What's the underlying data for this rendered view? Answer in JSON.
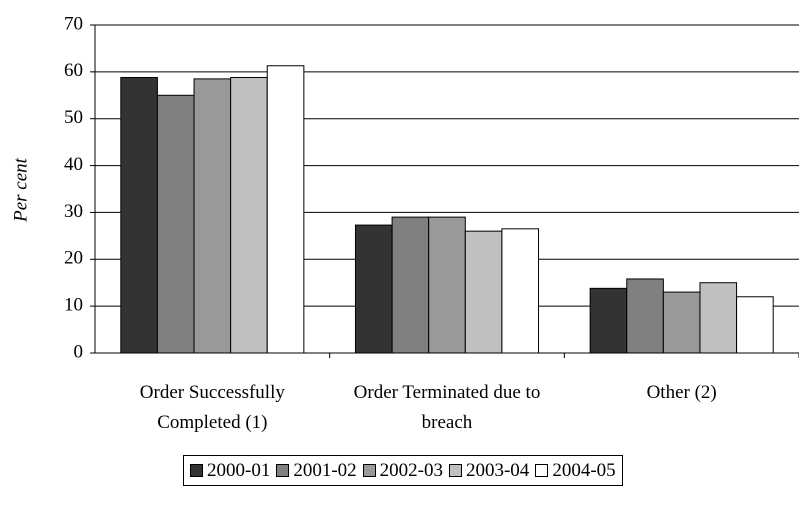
{
  "chart_data": {
    "type": "bar",
    "y_label": "Per cent",
    "categories": [
      "Order Successfully Completed (1)",
      "Order Terminated due to breach",
      "Other (2)"
    ],
    "series": [
      {
        "name": "2000-01",
        "color": "#333333",
        "values": [
          58.8,
          27.3,
          13.8
        ]
      },
      {
        "name": "2001-02",
        "color": "#808080",
        "values": [
          55,
          29,
          15.8
        ]
      },
      {
        "name": "2002-03",
        "color": "#999999",
        "values": [
          58.5,
          29,
          13
        ]
      },
      {
        "name": "2003-04",
        "color": "#c0c0c0",
        "values": [
          58.8,
          26,
          15
        ]
      },
      {
        "name": "2004-05",
        "color": "#ffffff",
        "values": [
          61.3,
          26.5,
          12
        ]
      }
    ],
    "ylim": [
      0,
      70
    ],
    "yticks": [
      0,
      10,
      20,
      30,
      40,
      50,
      60,
      70
    ],
    "grid": true
  }
}
